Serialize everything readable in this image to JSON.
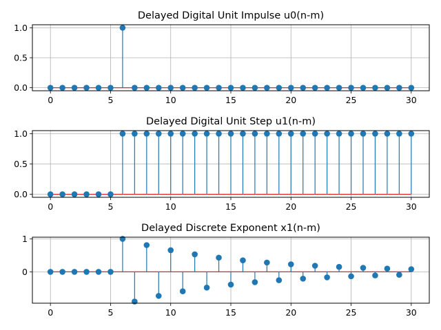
{
  "chart_data": [
    {
      "type": "stem",
      "title": "Delayed Digital Unit Impulse u0(n-m)",
      "x": [
        0,
        1,
        2,
        3,
        4,
        5,
        6,
        7,
        8,
        9,
        10,
        11,
        12,
        13,
        14,
        15,
        16,
        17,
        18,
        19,
        20,
        21,
        22,
        23,
        24,
        25,
        26,
        27,
        28,
        29,
        30
      ],
      "values": [
        0,
        0,
        0,
        0,
        0,
        0,
        1,
        0,
        0,
        0,
        0,
        0,
        0,
        0,
        0,
        0,
        0,
        0,
        0,
        0,
        0,
        0,
        0,
        0,
        0,
        0,
        0,
        0,
        0,
        0,
        0
      ],
      "xlim": [
        -1.5,
        31.5
      ],
      "ylim": [
        -0.05,
        1.05
      ],
      "xticks": [
        0,
        5,
        10,
        15,
        20,
        25,
        30
      ],
      "yticks": [
        0.0,
        0.5,
        1.0
      ],
      "ytick_labels": [
        "0.0",
        "0.5",
        "1.0"
      ],
      "grid": true,
      "marker_color": "#1f77b4",
      "baseline_color": "#d62728"
    },
    {
      "type": "stem",
      "title": "Delayed Digital Unit Step u1(n-m)",
      "x": [
        0,
        1,
        2,
        3,
        4,
        5,
        6,
        7,
        8,
        9,
        10,
        11,
        12,
        13,
        14,
        15,
        16,
        17,
        18,
        19,
        20,
        21,
        22,
        23,
        24,
        25,
        26,
        27,
        28,
        29,
        30
      ],
      "values": [
        0,
        0,
        0,
        0,
        0,
        0,
        1,
        1,
        1,
        1,
        1,
        1,
        1,
        1,
        1,
        1,
        1,
        1,
        1,
        1,
        1,
        1,
        1,
        1,
        1,
        1,
        1,
        1,
        1,
        1,
        1
      ],
      "xlim": [
        -1.5,
        31.5
      ],
      "ylim": [
        -0.05,
        1.05
      ],
      "xticks": [
        0,
        5,
        10,
        15,
        20,
        25,
        30
      ],
      "yticks": [
        0.0,
        0.5,
        1.0
      ],
      "ytick_labels": [
        "0.0",
        "0.5",
        "1.0"
      ],
      "grid": true,
      "marker_color": "#1f77b4",
      "baseline_color": "#d62728"
    },
    {
      "type": "stem",
      "title": "Delayed Discrete Exponent x1(n-m)",
      "x": [
        0,
        1,
        2,
        3,
        4,
        5,
        6,
        7,
        8,
        9,
        10,
        11,
        12,
        13,
        14,
        15,
        16,
        17,
        18,
        19,
        20,
        21,
        22,
        23,
        24,
        25,
        26,
        27,
        28,
        29,
        30
      ],
      "values": [
        0,
        0,
        0,
        0,
        0,
        0,
        1,
        -0.9,
        0.81,
        -0.729,
        0.656,
        -0.59,
        0.531,
        -0.478,
        0.43,
        -0.387,
        0.349,
        -0.314,
        0.282,
        -0.254,
        0.229,
        -0.206,
        0.185,
        -0.167,
        0.15,
        -0.135,
        0.122,
        -0.109,
        0.098,
        -0.089,
        0.08
      ],
      "xlim": [
        -1.5,
        31.5
      ],
      "ylim": [
        -0.95,
        1.05
      ],
      "xticks": [
        0,
        5,
        10,
        15,
        20,
        25,
        30
      ],
      "yticks": [
        0,
        1
      ],
      "ytick_labels": [
        "0",
        "1"
      ],
      "grid": true,
      "marker_color": "#1f77b4",
      "baseline_color": "#d62728"
    }
  ]
}
